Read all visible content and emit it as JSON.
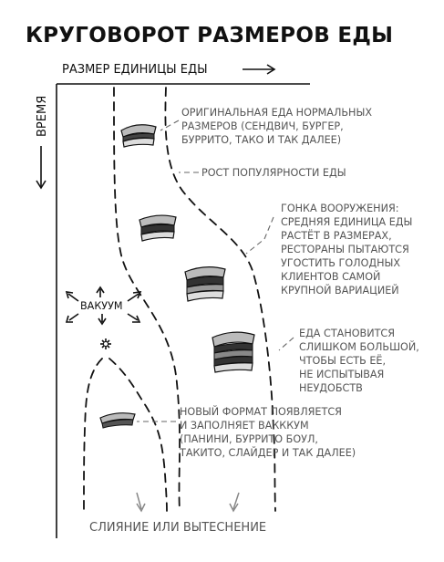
{
  "title": "КРУГОВОРОТ РАЗМЕРОВ ЕДЫ",
  "x_axis_label": "РАЗМЕР ЕДИНИЦЫ ЕДЫ",
  "y_axis_label": "ВРЕМЯ",
  "vacuum_label": "ВАКУУМ",
  "bottom_label": "СЛИЯНИЕ ИЛИ ВЫТЕСНЕНИЕ",
  "annotations": {
    "original": [
      "ОРИГИНАЛЬНАЯ ЕДА НОРМАЛЬНЫХ",
      "РАЗМЕРОВ (СЕНДВИЧ, БУРГЕР,",
      "БУРРИТО, ТАКО И ТАК ДАЛЕЕ)"
    ],
    "popularity": [
      "РОСТ ПОПУЛЯРНОСТИ ЕДЫ"
    ],
    "arms_race": [
      "ГОНКА ВООРУЖЕНИЯ:",
      "СРЕДНЯЯ ЕДИНИЦА ЕДЫ",
      "РАСТЁТ В РАЗМЕРАХ,",
      "РЕСТОРАНЫ ПЫТАЮТСЯ",
      "УГОСТИТЬ ГОЛОДНЫХ",
      "КЛИЕНТОВ САМОЙ",
      "КРУПНОЙ ВАРИАЦИЕЙ"
    ],
    "too_big": [
      "ЕДА СТАНОВИТСЯ",
      "СЛИШКОМ БОЛЬШОЙ,",
      "ЧТОБЫ ЕСТЬ ЕЁ,",
      "НЕ ИСПЫТЫВАЯ",
      "НЕУДОБСТВ"
    ],
    "new_format": [
      "НОВЫЙ ФОРМАТ ПОЯВЛЯЕТСЯ",
      "И ЗАПОЛНЯЕТ ВАКККУМ",
      "(ПАНИНИ, БУРРИТО БОУЛ,",
      "ТАКИТО, СЛАЙДЕР И ТАК ДАЛЕЕ)"
    ]
  },
  "icons": [
    "sandwich-icon",
    "burst-icon",
    "arrow-icon"
  ]
}
